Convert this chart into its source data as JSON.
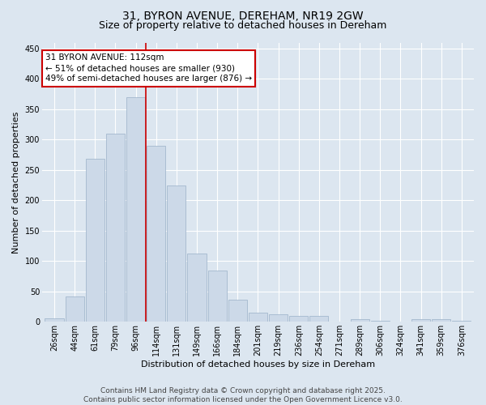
{
  "title_line1": "31, BYRON AVENUE, DEREHAM, NR19 2GW",
  "title_line2": "Size of property relative to detached houses in Dereham",
  "xlabel": "Distribution of detached houses by size in Dereham",
  "ylabel": "Number of detached properties",
  "categories": [
    "26sqm",
    "44sqm",
    "61sqm",
    "79sqm",
    "96sqm",
    "114sqm",
    "131sqm",
    "149sqm",
    "166sqm",
    "184sqm",
    "201sqm",
    "219sqm",
    "236sqm",
    "254sqm",
    "271sqm",
    "289sqm",
    "306sqm",
    "324sqm",
    "341sqm",
    "359sqm",
    "376sqm"
  ],
  "values": [
    6,
    42,
    268,
    310,
    370,
    290,
    225,
    113,
    85,
    36,
    15,
    12,
    10,
    10,
    0,
    5,
    2,
    0,
    5,
    5,
    2
  ],
  "bar_color": "#ccd9e8",
  "bar_edge_color": "#9ab0c8",
  "vline_color": "#cc0000",
  "annotation_text": "31 BYRON AVENUE: 112sqm\n← 51% of detached houses are smaller (930)\n49% of semi-detached houses are larger (876) →",
  "annotation_box_color": "white",
  "annotation_box_edge": "#cc0000",
  "ylim": [
    0,
    460
  ],
  "yticks": [
    0,
    50,
    100,
    150,
    200,
    250,
    300,
    350,
    400,
    450
  ],
  "background_color": "#dce6f0",
  "plot_bg_color": "#dce6f0",
  "footer_text": "Contains HM Land Registry data © Crown copyright and database right 2025.\nContains public sector information licensed under the Open Government Licence v3.0.",
  "title_fontsize": 10,
  "subtitle_fontsize": 9,
  "axis_label_fontsize": 8,
  "tick_fontsize": 7,
  "annotation_fontsize": 7.5,
  "footer_fontsize": 6.5
}
